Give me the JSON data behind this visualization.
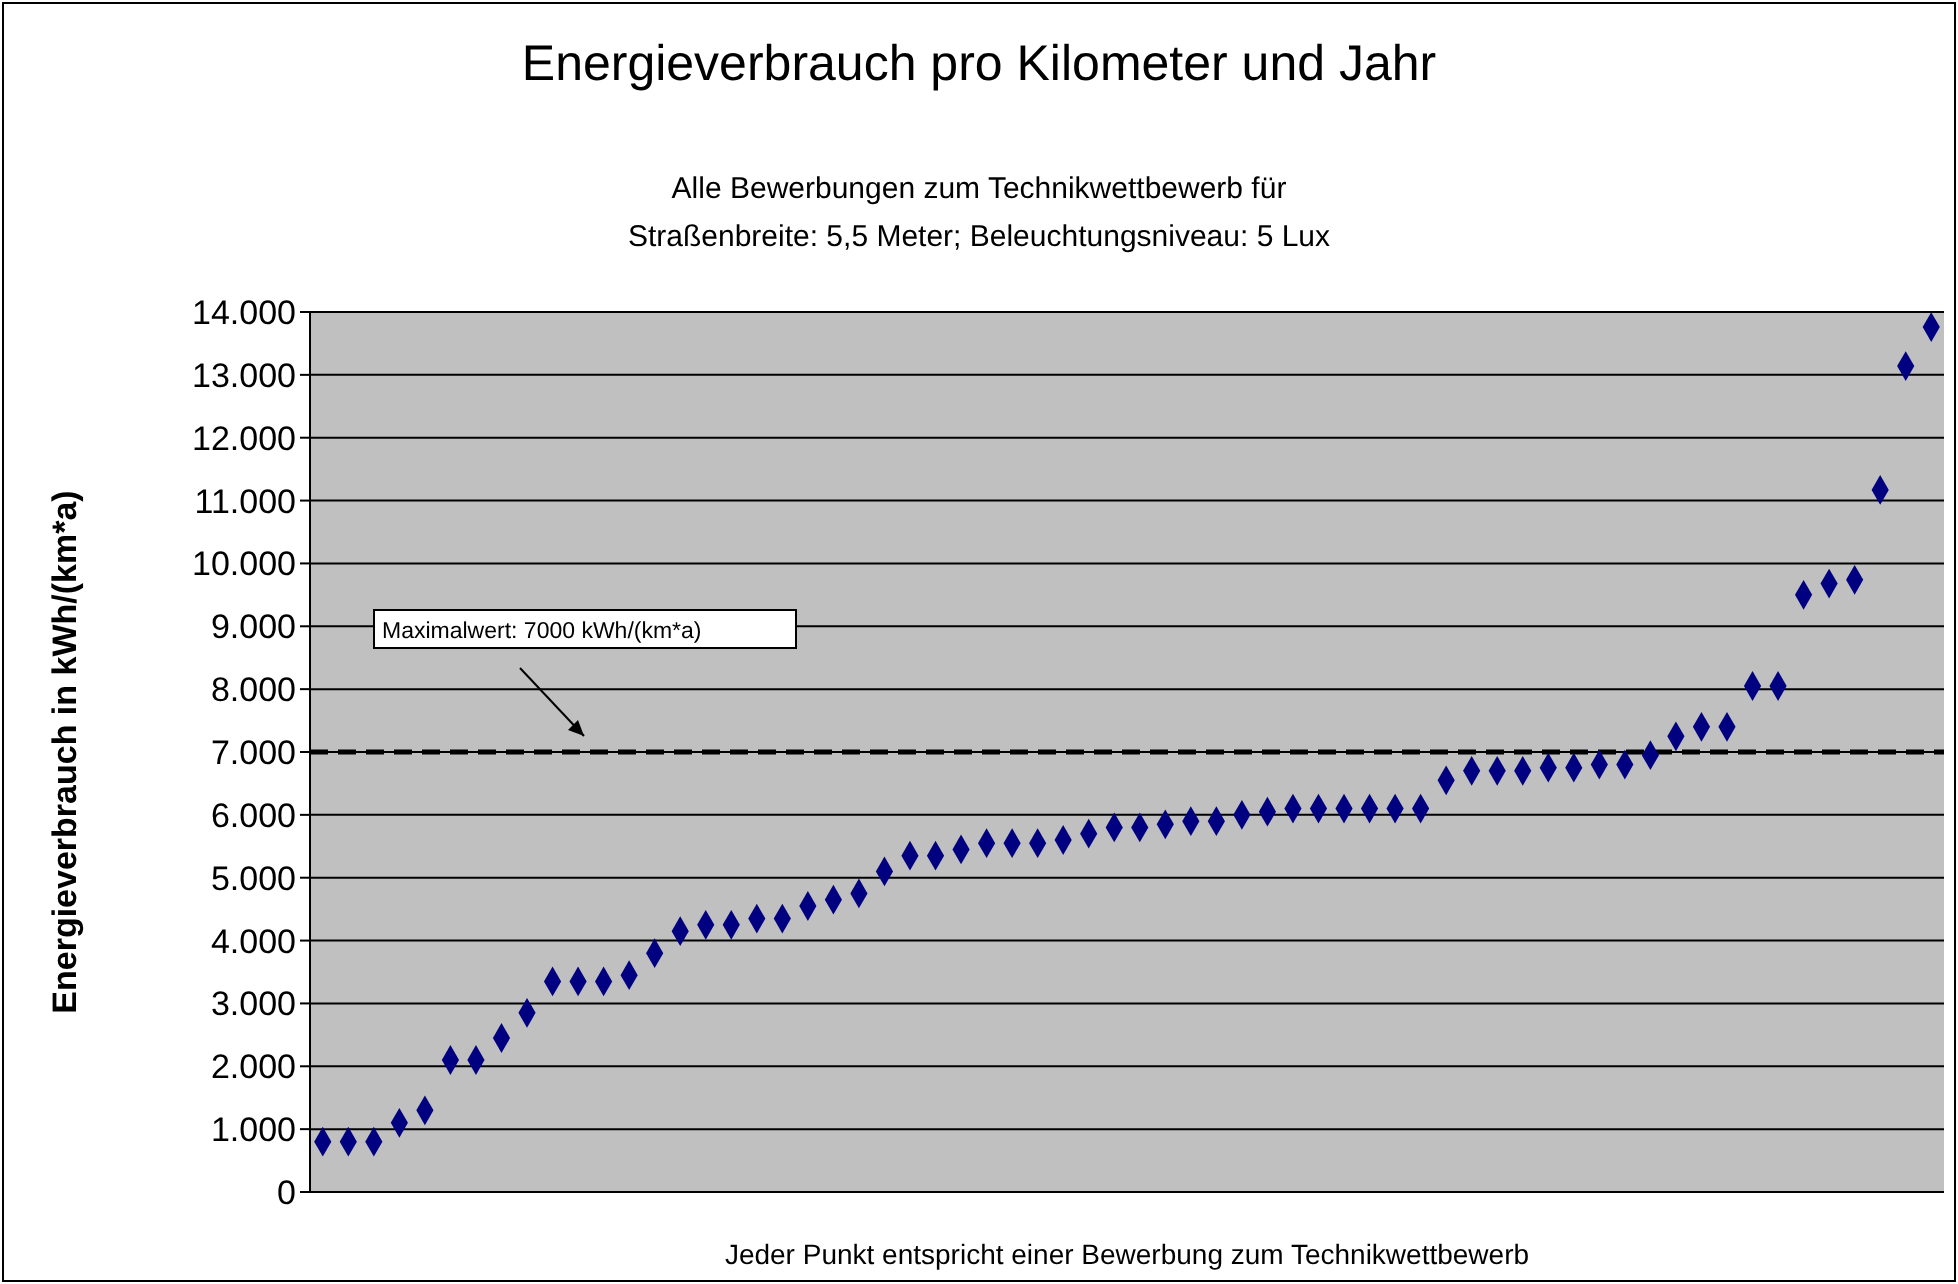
{
  "chart_data": {
    "type": "scatter",
    "title": "Energieverbrauch pro Kilometer und Jahr",
    "subtitle": "Alle Bewerbungen zum Technikwettbewerb für\nStraßenbreite: 5,5 Meter; Beleuchtungsniveau: 5 Lux",
    "xlabel": "Jeder Punkt entspricht einer Bewerbung zum Technikwettbewerb",
    "ylabel": "Energieverbrauch in kWh/(km*a)",
    "categories": [
      null,
      null,
      null,
      null,
      null,
      null,
      null,
      null,
      null,
      null,
      null,
      null,
      null,
      null,
      null,
      null,
      null,
      null,
      null,
      null,
      null,
      null,
      null,
      null,
      null,
      null,
      null,
      null,
      null,
      null,
      null,
      null,
      null,
      null,
      null,
      null,
      null,
      null,
      null,
      null,
      null,
      null,
      null,
      null,
      null,
      null,
      null,
      null,
      null,
      null,
      null,
      null,
      null,
      null,
      null,
      null,
      null,
      null,
      null,
      null,
      null,
      null,
      null,
      null
    ],
    "series": [
      {
        "color": "#000080",
        "values": [
          800,
          800,
          800,
          1100,
          1300,
          2100,
          2100,
          2450,
          2850,
          3350,
          3350,
          3350,
          3450,
          3800,
          4150,
          4250,
          4250,
          4350,
          4350,
          4550,
          4650,
          4750,
          5100,
          5350,
          5350,
          5450,
          5550,
          5550,
          5550,
          5600,
          5700,
          5800,
          5800,
          5850,
          5900,
          5900,
          6000,
          6050,
          6100,
          6100,
          6100,
          6100,
          6100,
          6100,
          6550,
          6700,
          6700,
          6700,
          6750,
          6750,
          6800,
          6800,
          6950,
          7250,
          7400,
          7400,
          8050,
          8050,
          9500,
          9680,
          9740,
          11170,
          13140,
          13760
        ]
      }
    ],
    "ylim": [
      0,
      14000
    ],
    "yticks": [
      0,
      {
        "value": 1000,
        "label": "1.000"
      },
      {
        "value": 2000,
        "label": "2.000"
      },
      {
        "value": 3000,
        "label": "3.000"
      },
      {
        "value": 4000,
        "label": "4.000"
      },
      {
        "value": 5000,
        "label": "5.000"
      },
      {
        "value": 6000,
        "label": "6.000"
      },
      {
        "value": 7000,
        "label": "7.000"
      },
      {
        "value": 8000,
        "label": "8.000"
      },
      {
        "value": 9000,
        "label": "9.000"
      },
      {
        "value": 10000,
        "label": "10.000"
      },
      {
        "value": 11000,
        "label": "11.000"
      },
      {
        "value": 12000,
        "label": "12.000"
      },
      {
        "value": 13000,
        "label": "13.000"
      },
      {
        "value": 14000,
        "label": "14.000"
      }
    ],
    "ref_lines": [
      {
        "axis": "y",
        "value": 7000,
        "label": "Maximalwert: 7000 kWh/(km*a)",
        "color": "#000000",
        "line_style": "dashed"
      }
    ],
    "grid": "y",
    "marker": "diamond"
  }
}
